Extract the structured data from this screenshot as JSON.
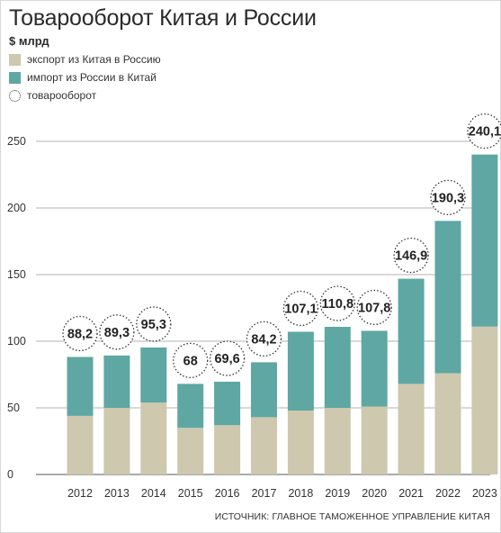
{
  "header": {
    "title": "Товарооборот Китая и России",
    "unit": "$ млрд"
  },
  "legend": {
    "items": [
      {
        "label": "экспорт из Китая в Россию",
        "color": "#cdc8ae",
        "shape": "square"
      },
      {
        "label": "импорт из России в Китай",
        "color": "#5ea7a2",
        "shape": "square"
      },
      {
        "label": "товарооборот",
        "color": "#333333",
        "shape": "dotted-circle"
      }
    ]
  },
  "source": "ИСТОЧНИК: ГЛАВНОЕ ТАМОЖЕННОЕ УПРАВЛЕНИЕ КИТАЯ",
  "chart_data": {
    "type": "bar",
    "stacked": true,
    "categories": [
      "2012",
      "2013",
      "2014",
      "2015",
      "2016",
      "2017",
      "2018",
      "2019",
      "2020",
      "2021",
      "2022",
      "2023"
    ],
    "series": [
      {
        "name": "экспорт из Китая в Россию",
        "color": "#cdc8ae",
        "values": [
          44,
          50,
          54,
          35,
          37,
          43,
          48,
          50,
          51,
          68,
          76,
          111
        ]
      },
      {
        "name": "импорт из России в Китай",
        "color": "#5ea7a2",
        "values": [
          44.2,
          39.3,
          41.3,
          33,
          32.6,
          41.2,
          59.1,
          60.8,
          56.8,
          78.9,
          114.3,
          129.1
        ]
      }
    ],
    "totals": [
      88.2,
      89.3,
      95.3,
      68,
      69.6,
      84.2,
      107.1,
      110.8,
      107.8,
      146.9,
      190.3,
      240.1
    ],
    "total_labels": [
      "88,2",
      "89,3",
      "95,3",
      "68",
      "69,6",
      "84,2",
      "107,1",
      "110,8",
      "107,8",
      "146,9",
      "190,3",
      "240,1"
    ],
    "yticks": [
      0,
      50,
      100,
      150,
      200,
      250
    ],
    "ylim": [
      0,
      260
    ],
    "grid": true,
    "legend_position": "top-left"
  }
}
